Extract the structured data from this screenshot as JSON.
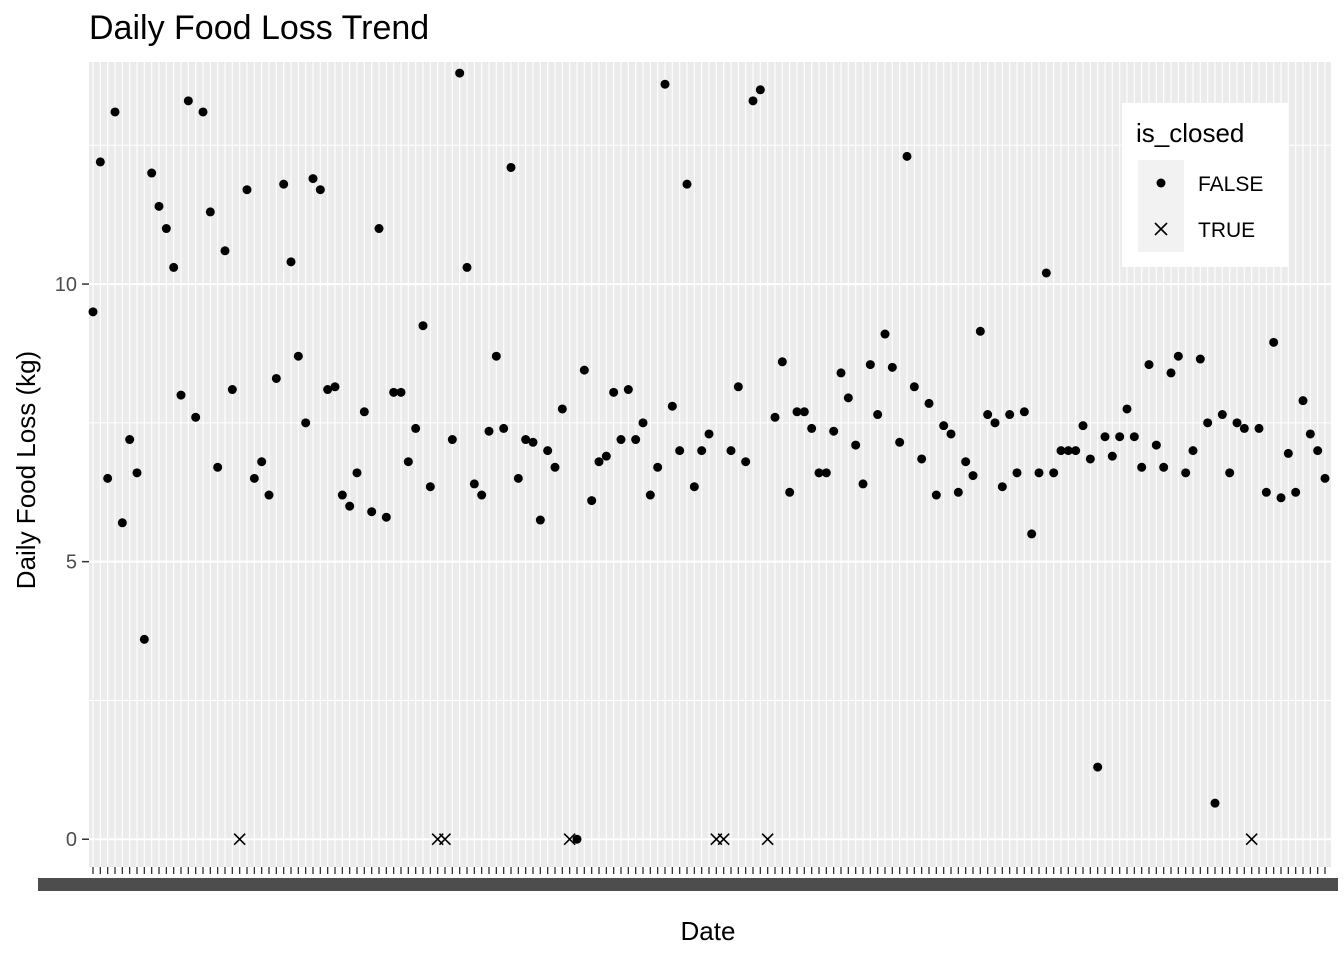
{
  "chart_data": {
    "type": "scatter",
    "title": "Daily Food Loss Trend",
    "xlabel": "Date",
    "ylabel": "Daily Food Loss (kg)",
    "ylim": [
      -0.5,
      14.0
    ],
    "yticks": [
      0,
      5,
      10
    ],
    "x_axis": "categorical dates, one per point (labels overlapping, unreadable)",
    "grid": true,
    "legend": {
      "title": "is_closed",
      "position": "top-right-inside",
      "entries": [
        {
          "label": "FALSE",
          "shape": "circle"
        },
        {
          "label": "TRUE",
          "shape": "cross"
        }
      ]
    },
    "points": [
      [
        9.5,
        false
      ],
      [
        12.2,
        false
      ],
      [
        6.5,
        false
      ],
      [
        13.1,
        false
      ],
      [
        5.7,
        false
      ],
      [
        7.2,
        false
      ],
      [
        6.6,
        false
      ],
      [
        3.6,
        false
      ],
      [
        12.0,
        false
      ],
      [
        11.4,
        false
      ],
      [
        11.0,
        false
      ],
      [
        10.3,
        false
      ],
      [
        8.0,
        false
      ],
      [
        13.3,
        false
      ],
      [
        7.6,
        false
      ],
      [
        13.1,
        false
      ],
      [
        11.3,
        false
      ],
      [
        6.7,
        false
      ],
      [
        10.6,
        false
      ],
      [
        8.1,
        false
      ],
      [
        0.0,
        true
      ],
      [
        11.7,
        false
      ],
      [
        6.5,
        false
      ],
      [
        6.8,
        false
      ],
      [
        6.2,
        false
      ],
      [
        8.3,
        false
      ],
      [
        11.8,
        false
      ],
      [
        10.4,
        false
      ],
      [
        8.7,
        false
      ],
      [
        7.5,
        false
      ],
      [
        11.9,
        false
      ],
      [
        11.7,
        false
      ],
      [
        8.1,
        false
      ],
      [
        8.15,
        false
      ],
      [
        6.2,
        false
      ],
      [
        6.0,
        false
      ],
      [
        6.6,
        false
      ],
      [
        7.7,
        false
      ],
      [
        5.9,
        false
      ],
      [
        11.0,
        false
      ],
      [
        5.8,
        false
      ],
      [
        8.05,
        false
      ],
      [
        8.05,
        false
      ],
      [
        6.8,
        false
      ],
      [
        7.4,
        false
      ],
      [
        9.25,
        false
      ],
      [
        6.35,
        false
      ],
      [
        0.0,
        true
      ],
      [
        0.0,
        true
      ],
      [
        7.2,
        false
      ],
      [
        13.8,
        false
      ],
      [
        10.3,
        false
      ],
      [
        6.4,
        false
      ],
      [
        6.2,
        false
      ],
      [
        7.35,
        false
      ],
      [
        8.7,
        false
      ],
      [
        7.4,
        false
      ],
      [
        12.1,
        false
      ],
      [
        6.5,
        false
      ],
      [
        7.2,
        false
      ],
      [
        7.15,
        false
      ],
      [
        5.75,
        false
      ],
      [
        7.0,
        false
      ],
      [
        6.7,
        false
      ],
      [
        7.75,
        false
      ],
      [
        0.0,
        true
      ],
      [
        0.0,
        false
      ],
      [
        8.45,
        false
      ],
      [
        6.1,
        false
      ],
      [
        6.8,
        false
      ],
      [
        6.9,
        false
      ],
      [
        8.05,
        false
      ],
      [
        7.2,
        false
      ],
      [
        8.1,
        false
      ],
      [
        7.2,
        false
      ],
      [
        7.5,
        false
      ],
      [
        6.2,
        false
      ],
      [
        6.7,
        false
      ],
      [
        13.6,
        false
      ],
      [
        7.8,
        false
      ],
      [
        7.0,
        false
      ],
      [
        11.8,
        false
      ],
      [
        6.35,
        false
      ],
      [
        7.0,
        false
      ],
      [
        7.3,
        false
      ],
      [
        0.0,
        true
      ],
      [
        0.0,
        true
      ],
      [
        7.0,
        false
      ],
      [
        8.15,
        false
      ],
      [
        6.8,
        false
      ],
      [
        13.3,
        false
      ],
      [
        13.5,
        false
      ],
      [
        0.0,
        true
      ],
      [
        7.6,
        false
      ],
      [
        8.6,
        false
      ],
      [
        6.25,
        false
      ],
      [
        7.7,
        false
      ],
      [
        7.7,
        false
      ],
      [
        7.4,
        false
      ],
      [
        6.6,
        false
      ],
      [
        6.6,
        false
      ],
      [
        7.35,
        false
      ],
      [
        8.4,
        false
      ],
      [
        7.95,
        false
      ],
      [
        7.1,
        false
      ],
      [
        6.4,
        false
      ],
      [
        8.55,
        false
      ],
      [
        7.65,
        false
      ],
      [
        9.1,
        false
      ],
      [
        8.5,
        false
      ],
      [
        7.15,
        false
      ],
      [
        12.3,
        false
      ],
      [
        8.15,
        false
      ],
      [
        6.85,
        false
      ],
      [
        7.85,
        false
      ],
      [
        6.2,
        false
      ],
      [
        7.45,
        false
      ],
      [
        7.3,
        false
      ],
      [
        6.25,
        false
      ],
      [
        6.8,
        false
      ],
      [
        6.55,
        false
      ],
      [
        9.15,
        false
      ],
      [
        7.65,
        false
      ],
      [
        7.5,
        false
      ],
      [
        6.35,
        false
      ],
      [
        7.65,
        false
      ],
      [
        6.6,
        false
      ],
      [
        7.7,
        false
      ],
      [
        5.5,
        false
      ],
      [
        6.6,
        false
      ],
      [
        10.2,
        false
      ],
      [
        6.6,
        false
      ],
      [
        7.0,
        false
      ],
      [
        7.0,
        false
      ],
      [
        7.0,
        false
      ],
      [
        7.45,
        false
      ],
      [
        6.85,
        false
      ],
      [
        1.3,
        false
      ],
      [
        7.25,
        false
      ],
      [
        6.9,
        false
      ],
      [
        7.25,
        false
      ],
      [
        7.75,
        false
      ],
      [
        7.25,
        false
      ],
      [
        6.7,
        false
      ],
      [
        8.55,
        false
      ],
      [
        7.1,
        false
      ],
      [
        6.7,
        false
      ],
      [
        8.4,
        false
      ],
      [
        8.7,
        false
      ],
      [
        6.6,
        false
      ],
      [
        7.0,
        false
      ],
      [
        8.65,
        false
      ],
      [
        7.5,
        false
      ],
      [
        0.65,
        false
      ],
      [
        7.65,
        false
      ],
      [
        6.6,
        false
      ],
      [
        7.5,
        false
      ],
      [
        7.4,
        false
      ],
      [
        0.0,
        true
      ],
      [
        7.4,
        false
      ],
      [
        6.25,
        false
      ],
      [
        8.95,
        false
      ],
      [
        6.15,
        false
      ],
      [
        6.95,
        false
      ],
      [
        6.25,
        false
      ],
      [
        7.9,
        false
      ],
      [
        7.3,
        false
      ],
      [
        7.0,
        false
      ],
      [
        6.5,
        false
      ]
    ]
  }
}
